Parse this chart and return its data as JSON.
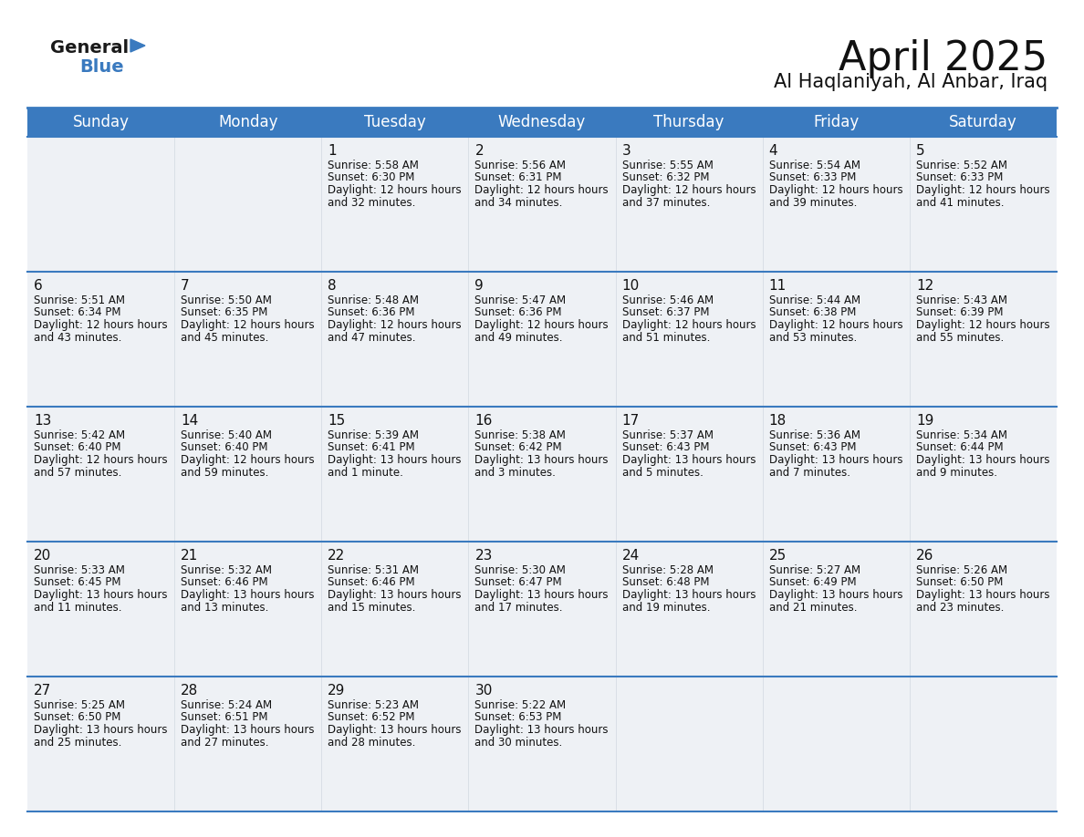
{
  "title": "April 2025",
  "subtitle": "Al Haqlaniyah, Al Anbar, Iraq",
  "header_color": "#3a7abf",
  "header_text_color": "#ffffff",
  "cell_bg_color": "#eef1f5",
  "border_color": "#3a7abf",
  "row_line_color": "#3a7abf",
  "days_of_week": [
    "Sunday",
    "Monday",
    "Tuesday",
    "Wednesday",
    "Thursday",
    "Friday",
    "Saturday"
  ],
  "calendar": [
    [
      {
        "day": "",
        "sunrise": "",
        "sunset": "",
        "daylight": ""
      },
      {
        "day": "",
        "sunrise": "",
        "sunset": "",
        "daylight": ""
      },
      {
        "day": "1",
        "sunrise": "5:58 AM",
        "sunset": "6:30 PM",
        "daylight": "12 hours and 32 minutes."
      },
      {
        "day": "2",
        "sunrise": "5:56 AM",
        "sunset": "6:31 PM",
        "daylight": "12 hours and 34 minutes."
      },
      {
        "day": "3",
        "sunrise": "5:55 AM",
        "sunset": "6:32 PM",
        "daylight": "12 hours and 37 minutes."
      },
      {
        "day": "4",
        "sunrise": "5:54 AM",
        "sunset": "6:33 PM",
        "daylight": "12 hours and 39 minutes."
      },
      {
        "day": "5",
        "sunrise": "5:52 AM",
        "sunset": "6:33 PM",
        "daylight": "12 hours and 41 minutes."
      }
    ],
    [
      {
        "day": "6",
        "sunrise": "5:51 AM",
        "sunset": "6:34 PM",
        "daylight": "12 hours and 43 minutes."
      },
      {
        "day": "7",
        "sunrise": "5:50 AM",
        "sunset": "6:35 PM",
        "daylight": "12 hours and 45 minutes."
      },
      {
        "day": "8",
        "sunrise": "5:48 AM",
        "sunset": "6:36 PM",
        "daylight": "12 hours and 47 minutes."
      },
      {
        "day": "9",
        "sunrise": "5:47 AM",
        "sunset": "6:36 PM",
        "daylight": "12 hours and 49 minutes."
      },
      {
        "day": "10",
        "sunrise": "5:46 AM",
        "sunset": "6:37 PM",
        "daylight": "12 hours and 51 minutes."
      },
      {
        "day": "11",
        "sunrise": "5:44 AM",
        "sunset": "6:38 PM",
        "daylight": "12 hours and 53 minutes."
      },
      {
        "day": "12",
        "sunrise": "5:43 AM",
        "sunset": "6:39 PM",
        "daylight": "12 hours and 55 minutes."
      }
    ],
    [
      {
        "day": "13",
        "sunrise": "5:42 AM",
        "sunset": "6:40 PM",
        "daylight": "12 hours and 57 minutes."
      },
      {
        "day": "14",
        "sunrise": "5:40 AM",
        "sunset": "6:40 PM",
        "daylight": "12 hours and 59 minutes."
      },
      {
        "day": "15",
        "sunrise": "5:39 AM",
        "sunset": "6:41 PM",
        "daylight": "13 hours and 1 minute."
      },
      {
        "day": "16",
        "sunrise": "5:38 AM",
        "sunset": "6:42 PM",
        "daylight": "13 hours and 3 minutes."
      },
      {
        "day": "17",
        "sunrise": "5:37 AM",
        "sunset": "6:43 PM",
        "daylight": "13 hours and 5 minutes."
      },
      {
        "day": "18",
        "sunrise": "5:36 AM",
        "sunset": "6:43 PM",
        "daylight": "13 hours and 7 minutes."
      },
      {
        "day": "19",
        "sunrise": "5:34 AM",
        "sunset": "6:44 PM",
        "daylight": "13 hours and 9 minutes."
      }
    ],
    [
      {
        "day": "20",
        "sunrise": "5:33 AM",
        "sunset": "6:45 PM",
        "daylight": "13 hours and 11 minutes."
      },
      {
        "day": "21",
        "sunrise": "5:32 AM",
        "sunset": "6:46 PM",
        "daylight": "13 hours and 13 minutes."
      },
      {
        "day": "22",
        "sunrise": "5:31 AM",
        "sunset": "6:46 PM",
        "daylight": "13 hours and 15 minutes."
      },
      {
        "day": "23",
        "sunrise": "5:30 AM",
        "sunset": "6:47 PM",
        "daylight": "13 hours and 17 minutes."
      },
      {
        "day": "24",
        "sunrise": "5:28 AM",
        "sunset": "6:48 PM",
        "daylight": "13 hours and 19 minutes."
      },
      {
        "day": "25",
        "sunrise": "5:27 AM",
        "sunset": "6:49 PM",
        "daylight": "13 hours and 21 minutes."
      },
      {
        "day": "26",
        "sunrise": "5:26 AM",
        "sunset": "6:50 PM",
        "daylight": "13 hours and 23 minutes."
      }
    ],
    [
      {
        "day": "27",
        "sunrise": "5:25 AM",
        "sunset": "6:50 PM",
        "daylight": "13 hours and 25 minutes."
      },
      {
        "day": "28",
        "sunrise": "5:24 AM",
        "sunset": "6:51 PM",
        "daylight": "13 hours and 27 minutes."
      },
      {
        "day": "29",
        "sunrise": "5:23 AM",
        "sunset": "6:52 PM",
        "daylight": "13 hours and 28 minutes."
      },
      {
        "day": "30",
        "sunrise": "5:22 AM",
        "sunset": "6:53 PM",
        "daylight": "13 hours and 30 minutes."
      },
      {
        "day": "",
        "sunrise": "",
        "sunset": "",
        "daylight": ""
      },
      {
        "day": "",
        "sunrise": "",
        "sunset": "",
        "daylight": ""
      },
      {
        "day": "",
        "sunrise": "",
        "sunset": "",
        "daylight": ""
      }
    ]
  ],
  "logo_text_general": "General",
  "logo_text_blue": "Blue",
  "logo_color_general": "#1a1a1a",
  "logo_color_blue": "#3a7abf",
  "logo_triangle_color": "#3a7abf",
  "title_fontsize": 32,
  "subtitle_fontsize": 15,
  "header_fontsize": 12,
  "day_num_fontsize": 11,
  "cell_text_fontsize": 8.5
}
